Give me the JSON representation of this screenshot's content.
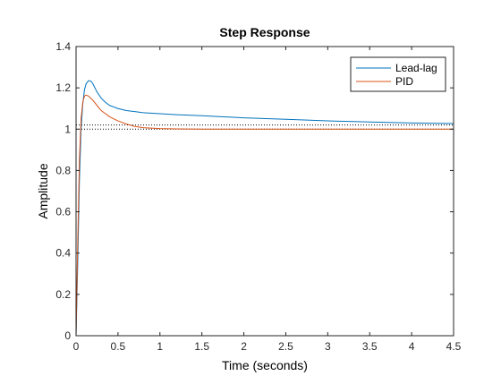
{
  "chart_data": {
    "type": "line",
    "title": "Step Response",
    "xlabel": "Time (seconds)",
    "ylabel": "Amplitude",
    "xlim": [
      0,
      4.5
    ],
    "ylim": [
      0,
      1.4
    ],
    "xticks": [
      0,
      0.5,
      1,
      1.5,
      2,
      2.5,
      3,
      3.5,
      4,
      4.5
    ],
    "yticks": [
      0,
      0.2,
      0.4,
      0.6,
      0.8,
      1,
      1.2,
      1.4
    ],
    "xtick_labels": [
      "0",
      "0.5",
      "1",
      "1.5",
      "2",
      "2.5",
      "3",
      "3.5",
      "4",
      "4.5"
    ],
    "ytick_labels": [
      "0",
      "0.2",
      "0.4",
      "0.6",
      "0.8",
      "1",
      "1.2",
      "1.4"
    ],
    "grid": false,
    "legend": "top-right",
    "reference_lines": [
      {
        "y": 1.0,
        "style": "dotted",
        "color": "#000000"
      },
      {
        "y": 1.02,
        "style": "dotted",
        "color": "#000000"
      }
    ],
    "series": [
      {
        "name": "Lead-lag",
        "color": "#0072BD",
        "x": [
          0,
          0.02,
          0.04,
          0.06,
          0.08,
          0.1,
          0.12,
          0.15,
          0.18,
          0.2,
          0.25,
          0.3,
          0.35,
          0.4,
          0.5,
          0.6,
          0.7,
          0.8,
          1.0,
          1.2,
          1.5,
          2.0,
          2.5,
          3.0,
          3.5,
          4.0,
          4.5
        ],
        "y": [
          0,
          0.35,
          0.75,
          1.0,
          1.12,
          1.19,
          1.22,
          1.235,
          1.232,
          1.22,
          1.18,
          1.15,
          1.13,
          1.115,
          1.1,
          1.09,
          1.085,
          1.08,
          1.075,
          1.07,
          1.065,
          1.055,
          1.048,
          1.04,
          1.035,
          1.03,
          1.027
        ]
      },
      {
        "name": "PID",
        "color": "#D95319",
        "x": [
          0,
          0.02,
          0.04,
          0.06,
          0.08,
          0.1,
          0.12,
          0.15,
          0.2,
          0.25,
          0.3,
          0.4,
          0.5,
          0.6,
          0.7,
          0.8,
          1.0,
          1.2,
          1.5,
          2.0,
          2.5,
          3.0,
          3.5,
          4.0,
          4.5
        ],
        "y": [
          0,
          0.45,
          0.85,
          1.05,
          1.13,
          1.16,
          1.165,
          1.16,
          1.14,
          1.115,
          1.09,
          1.06,
          1.04,
          1.025,
          1.013,
          1.007,
          1.003,
          1.001,
          1.0,
          1.0,
          1.0,
          1.0,
          1.0,
          1.0,
          1.0
        ]
      }
    ]
  }
}
